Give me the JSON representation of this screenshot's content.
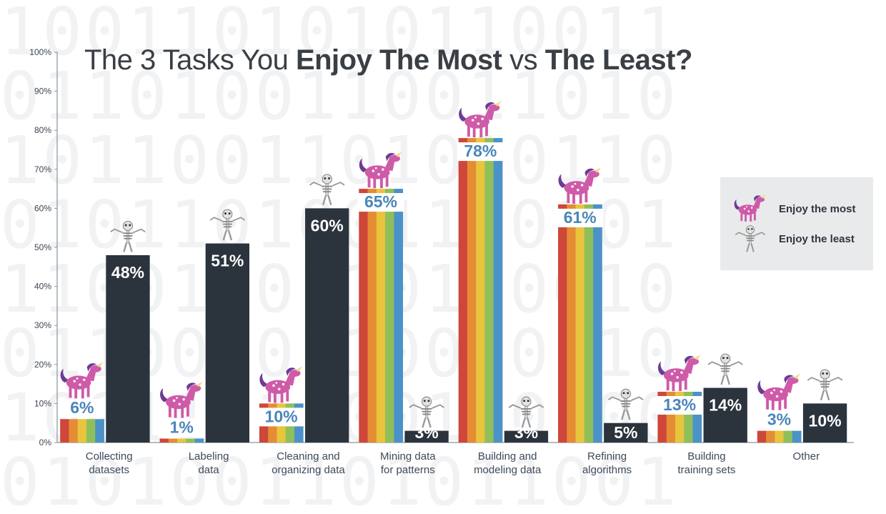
{
  "title": {
    "part1": "The 3 Tasks You ",
    "part2": "Enjoy The Most",
    "part3": " vs ",
    "part4": "The Least?"
  },
  "legend": {
    "most_label": "Enjoy the most",
    "least_label": "Enjoy the least",
    "most_icon": "unicorn-icon",
    "least_icon": "skeleton-icon"
  },
  "colors": {
    "least_bar": "#2b333d",
    "rainbow": [
      "#cf463a",
      "#e58c35",
      "#e8c53d",
      "#8fbf5a",
      "#4b92c8"
    ],
    "most_label_color": "#4a86b8",
    "least_label_color": "#ffffff",
    "unicorn_body": "#cf5aa8",
    "unicorn_mane": "#6a3c94"
  },
  "chart_data": {
    "type": "bar",
    "title": "The 3 Tasks You Enjoy The Most vs The Least?",
    "ylim": [
      0,
      100
    ],
    "yticks": [
      "0%",
      "10%",
      "20%",
      "30%",
      "40%",
      "50%",
      "60%",
      "70%",
      "80%",
      "90%",
      "100%"
    ],
    "grid": false,
    "legend_position": "right",
    "categories": [
      [
        "Collecting",
        "datasets"
      ],
      [
        "Labeling",
        "data"
      ],
      [
        "Cleaning and",
        "organizing data"
      ],
      [
        "Mining data",
        "for patterns"
      ],
      [
        "Building and",
        "modeling data"
      ],
      [
        "Refining",
        "algorithms"
      ],
      [
        "Building",
        "training sets"
      ],
      [
        "Other"
      ]
    ],
    "series": [
      {
        "name": "Enjoy the most",
        "values": [
          6,
          1,
          10,
          65,
          78,
          61,
          13,
          3
        ],
        "labels": [
          "6%",
          "1%",
          "10%",
          "65%",
          "78%",
          "61%",
          "13%",
          "3%"
        ]
      },
      {
        "name": "Enjoy the least",
        "values": [
          48,
          51,
          60,
          3,
          3,
          5,
          14,
          10
        ],
        "labels": [
          "48%",
          "51%",
          "60%",
          "3%",
          "3%",
          "5%",
          "14%",
          "10%"
        ]
      }
    ]
  }
}
